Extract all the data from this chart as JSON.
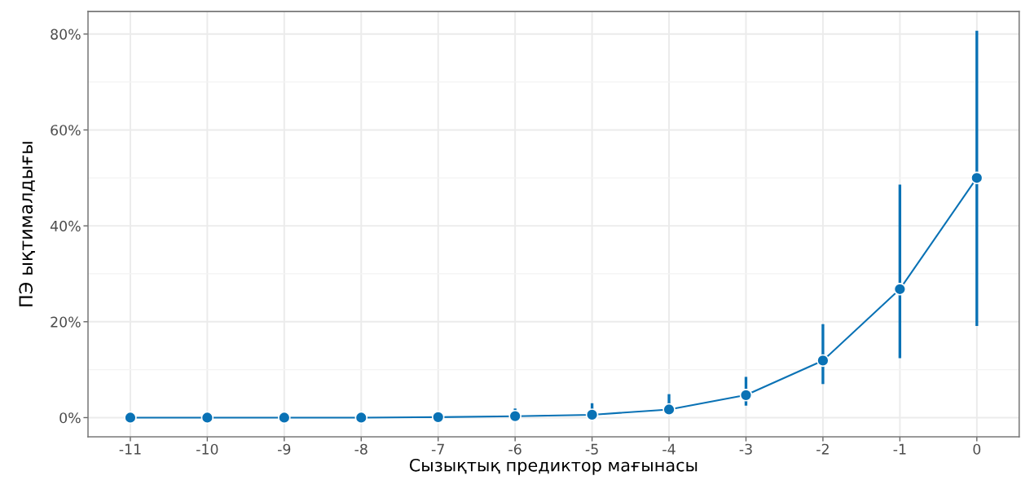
{
  "chart_data": {
    "type": "line",
    "xlabel": "Сызықтық предиктор мағынасы",
    "ylabel": "ПЭ ықтималдығы",
    "x": [
      -11,
      -10,
      -9,
      -8,
      -7,
      -6,
      -5,
      -4,
      -3,
      -2,
      -1,
      0
    ],
    "values": [
      0,
      0,
      0,
      0,
      0.1,
      0.3,
      0.6,
      1.7,
      4.7,
      11.9,
      26.8,
      50
    ],
    "errors": [
      null,
      null,
      null,
      null,
      [
        0,
        1.1
      ],
      [
        0,
        1.9
      ],
      [
        0.1,
        3.0
      ],
      [
        0.6,
        4.9
      ],
      [
        2.5,
        8.5
      ],
      [
        7.0,
        19.5
      ],
      [
        12.4,
        48.6
      ],
      [
        19.1,
        80.7
      ]
    ],
    "color": "#0a72b5",
    "xlim": [
      -11.55,
      0.55
    ],
    "xticks": [
      -11,
      -10,
      -9,
      -8,
      -7,
      -6,
      -5,
      -4,
      -3,
      -2,
      -1,
      0
    ],
    "ylim": [
      -4.0,
      84.7
    ],
    "yticks": [
      {
        "value": 0,
        "label": "0%"
      },
      {
        "value": 10,
        "label": null
      },
      {
        "value": 20,
        "label": "20%"
      },
      {
        "value": 30,
        "label": null
      },
      {
        "value": 40,
        "label": "40%"
      },
      {
        "value": 50,
        "label": null
      },
      {
        "value": 60,
        "label": "60%"
      },
      {
        "value": 70,
        "label": null
      },
      {
        "value": 80,
        "label": "80%"
      }
    ],
    "grid": true,
    "marker": "circle",
    "line_style": "solid"
  }
}
